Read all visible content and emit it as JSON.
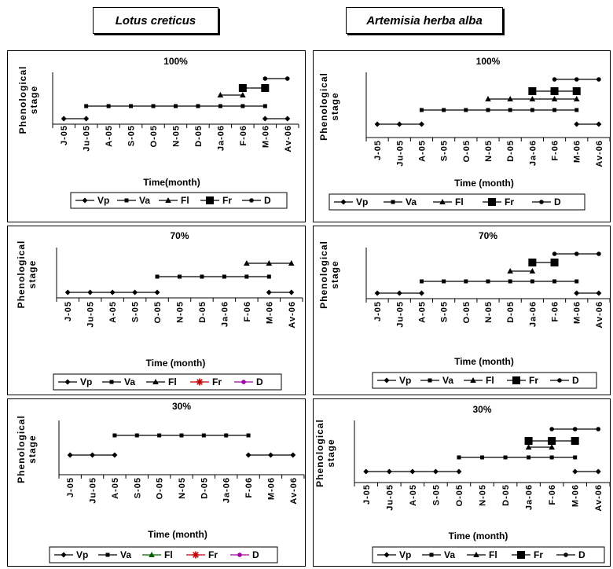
{
  "headers": [
    "Lotus creticus",
    "Artemisia herba alba"
  ],
  "chart_data": [
    {
      "type": "line",
      "species": "Lotus creticus",
      "title": "100%",
      "xlabel": "Time(month)",
      "ylabel": "Phenological stage",
      "categories": [
        "J-05",
        "Ju-05",
        "A-05",
        "S-05",
        "O-05",
        "N-05",
        "D-05",
        "Ja-06",
        "F-06",
        "M-06",
        "Av-06"
      ],
      "series": [
        {
          "name": "Vp",
          "level": 1,
          "color": "#000000",
          "marker": "diamond",
          "x": [
            0,
            1,
            9,
            10
          ]
        },
        {
          "name": "Va",
          "level": 2,
          "color": "#000000",
          "marker": "square",
          "x": [
            1,
            2,
            3,
            4,
            5,
            6,
            7,
            8,
            9
          ]
        },
        {
          "name": "Fl",
          "level": 3,
          "color": "#000000",
          "marker": "triangle",
          "x": [
            7,
            8
          ]
        },
        {
          "name": "Fr",
          "level": 4,
          "color": "#000000",
          "marker": "bigsquare",
          "x": [
            8,
            9
          ]
        },
        {
          "name": "D",
          "level": 5,
          "color": "#000000",
          "marker": "circle",
          "x": [
            9,
            10
          ]
        }
      ]
    },
    {
      "type": "line",
      "species": "Artemisia herba alba",
      "title": "100%",
      "xlabel": "Time (month)",
      "ylabel": "Phenological stage",
      "categories": [
        "J-05",
        "Ju-05",
        "A-05",
        "S-05",
        "O-05",
        "N-05",
        "D-05",
        "Ja-06",
        "F-06",
        "M-06",
        "Av-06"
      ],
      "series": [
        {
          "name": "Vp",
          "level": 1,
          "color": "#000000",
          "marker": "diamond",
          "x": [
            0,
            1,
            2,
            9,
            10
          ]
        },
        {
          "name": "Va",
          "level": 2,
          "color": "#000000",
          "marker": "square",
          "x": [
            2,
            3,
            4,
            5,
            6,
            7,
            8,
            9
          ]
        },
        {
          "name": "Fl",
          "level": 3,
          "color": "#000000",
          "marker": "triangle",
          "x": [
            5,
            6,
            7,
            8,
            9
          ]
        },
        {
          "name": "Fr",
          "level": 4,
          "color": "#000000",
          "marker": "bigsquare",
          "x": [
            7,
            8,
            9
          ]
        },
        {
          "name": "D",
          "level": 5,
          "color": "#000000",
          "marker": "circle",
          "x": [
            8,
            9,
            10
          ]
        }
      ]
    },
    {
      "type": "line",
      "species": "Lotus creticus",
      "title": "70%",
      "xlabel": "Time (month)",
      "ylabel": "Phenological stage",
      "categories": [
        "J-05",
        "Ju-05",
        "A-05",
        "S-05",
        "O-05",
        "N-05",
        "D-05",
        "Ja-06",
        "F-06",
        "M-06",
        "Av-06"
      ],
      "series": [
        {
          "name": "Vp",
          "level": 1,
          "color": "#000000",
          "marker": "diamond",
          "x": [
            0,
            1,
            2,
            3,
            4,
            9,
            10
          ]
        },
        {
          "name": "Va",
          "level": 2,
          "color": "#000000",
          "marker": "square",
          "x": [
            4,
            5,
            6,
            7,
            8,
            9
          ]
        },
        {
          "name": "Fl",
          "level": 3,
          "color": "#000000",
          "marker": "triangle",
          "x": [
            8,
            9,
            10
          ]
        },
        {
          "name": "Fr",
          "level": 4,
          "color": "#c00000",
          "marker": "star",
          "x": []
        },
        {
          "name": "D",
          "level": 5,
          "color": "#a000a0",
          "marker": "circle",
          "x": []
        }
      ]
    },
    {
      "type": "line",
      "species": "Artemisia herba alba",
      "title": "70%",
      "xlabel": "Time (month)",
      "ylabel": "Phenological stage",
      "categories": [
        "J-05",
        "Ju-05",
        "A-05",
        "S-05",
        "O-05",
        "N-05",
        "D-05",
        "Ja-06",
        "F-06",
        "M-06",
        "Av-06"
      ],
      "series": [
        {
          "name": "Vp",
          "level": 1,
          "color": "#000000",
          "marker": "diamond",
          "x": [
            0,
            1,
            2,
            9,
            10
          ]
        },
        {
          "name": "Va",
          "level": 2,
          "color": "#000000",
          "marker": "square",
          "x": [
            2,
            3,
            4,
            5,
            6,
            7,
            8,
            9
          ]
        },
        {
          "name": "Fl",
          "level": 3,
          "color": "#000000",
          "marker": "triangle",
          "x": [
            6,
            7
          ]
        },
        {
          "name": "Fr",
          "level": 4,
          "color": "#000000",
          "marker": "bigsquare",
          "x": [
            7,
            8
          ]
        },
        {
          "name": "D",
          "level": 5,
          "color": "#000000",
          "marker": "circle",
          "x": [
            8,
            9,
            10
          ]
        }
      ]
    },
    {
      "type": "line",
      "species": "Lotus creticus",
      "title": "30%",
      "xlabel": "Time (month)",
      "ylabel": "Phenological stage",
      "categories": [
        "J-05",
        "Ju-05",
        "A-05",
        "S-05",
        "O-05",
        "N-05",
        "D-05",
        "Ja-06",
        "F-06",
        "M-06",
        "Av-06"
      ],
      "series": [
        {
          "name": "Vp",
          "level": 1,
          "color": "#000000",
          "marker": "diamond",
          "x": [
            0,
            1,
            2,
            8,
            9,
            10
          ]
        },
        {
          "name": "Va",
          "level": 2,
          "color": "#000000",
          "marker": "square",
          "x": [
            2,
            3,
            4,
            5,
            6,
            7,
            8
          ]
        },
        {
          "name": "Fl",
          "level": 3,
          "color": "#006000",
          "marker": "triangle",
          "x": []
        },
        {
          "name": "Fr",
          "level": 4,
          "color": "#c00000",
          "marker": "star",
          "x": []
        },
        {
          "name": "D",
          "level": 5,
          "color": "#a000a0",
          "marker": "circle",
          "x": []
        }
      ]
    },
    {
      "type": "line",
      "species": "Artemisia herba alba",
      "title": "30%",
      "xlabel": "Time (month)",
      "ylabel": "Phenological stage",
      "categories": [
        "J-05",
        "Ju-05",
        "A-05",
        "S-05",
        "O-05",
        "N-05",
        "D-05",
        "Ja-06",
        "F-06",
        "M-06",
        "Av-06"
      ],
      "series": [
        {
          "name": "Vp",
          "level": 1,
          "color": "#000000",
          "marker": "diamond",
          "x": [
            0,
            1,
            2,
            3,
            4,
            9,
            10
          ]
        },
        {
          "name": "Va",
          "level": 2,
          "color": "#000000",
          "marker": "square",
          "x": [
            4,
            5,
            6,
            7,
            8,
            9
          ]
        },
        {
          "name": "Fl",
          "level": 3,
          "color": "#000000",
          "marker": "triangle",
          "x": [
            7,
            8
          ]
        },
        {
          "name": "Fr",
          "level": 4,
          "color": "#000000",
          "marker": "bigsquare",
          "x": [
            7,
            8,
            9
          ]
        },
        {
          "name": "D",
          "level": 5,
          "color": "#000000",
          "marker": "circle",
          "x": [
            8,
            9,
            10
          ]
        }
      ]
    }
  ]
}
